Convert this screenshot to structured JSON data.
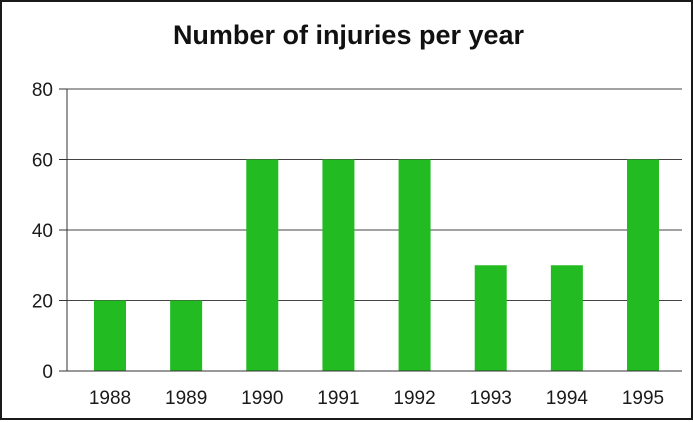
{
  "chart_data": {
    "type": "bar",
    "title": "Number of injuries per year",
    "categories": [
      "1988",
      "1989",
      "1990",
      "1991",
      "1992",
      "1993",
      "1994",
      "1995"
    ],
    "values": [
      20,
      20,
      60,
      60,
      60,
      30,
      30,
      60
    ],
    "ylim": [
      0,
      80
    ],
    "yticks": [
      0,
      20,
      40,
      60,
      80
    ],
    "grid": true,
    "bar_color": "#22bb22",
    "xlabel": "",
    "ylabel": ""
  }
}
